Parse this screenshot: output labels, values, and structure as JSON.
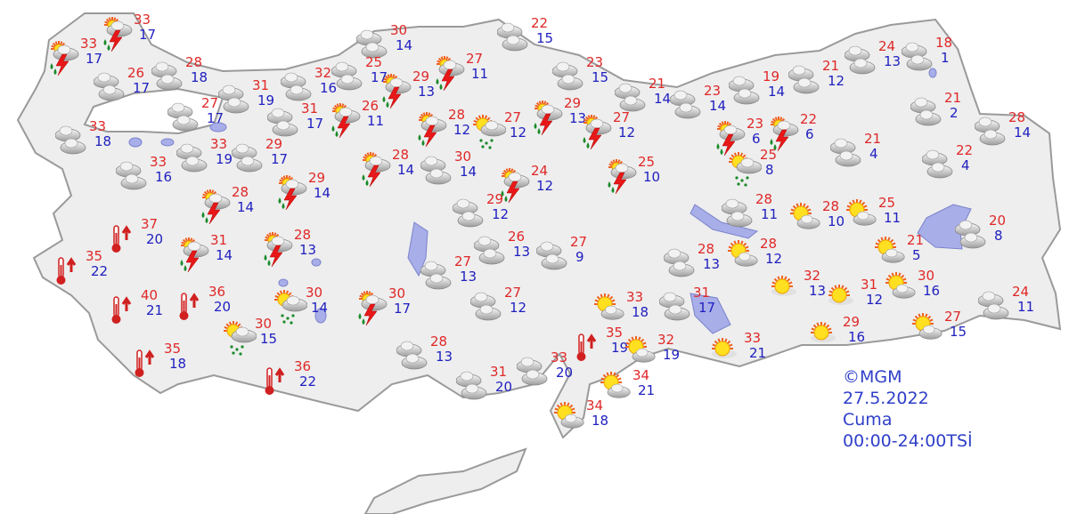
{
  "legend": {
    "copyright": "©MGM",
    "date": "27.5.2022",
    "day": "Cuma",
    "period": "00:00-24:00TSİ"
  },
  "colors": {
    "max_temp": "#e02828",
    "min_temp": "#2020c0",
    "land": "#eeeeee",
    "water": "#a8aee8",
    "border": "#9a9a9a"
  },
  "stations": [
    {
      "icon": "thunderstorm",
      "max": "33",
      "min": "17"
    },
    {
      "icon": "thunderstorm",
      "max": "33",
      "min": "17"
    },
    {
      "icon": "cloudy",
      "max": "26",
      "min": "17"
    },
    {
      "icon": "cloudy",
      "max": "28",
      "min": "18"
    },
    {
      "icon": "cloudy",
      "max": "33",
      "min": "18"
    },
    {
      "icon": "cloudy",
      "max": "27",
      "min": "17"
    },
    {
      "icon": "cloudy",
      "max": "31",
      "min": "19"
    },
    {
      "icon": "cloudy",
      "max": "32",
      "min": "16"
    },
    {
      "icon": "cloudy",
      "max": "31",
      "min": "17"
    },
    {
      "icon": "cloudy",
      "max": "33",
      "min": "19"
    },
    {
      "icon": "cloudy",
      "max": "29",
      "min": "17"
    },
    {
      "icon": "cloudy",
      "max": "33",
      "min": "16"
    },
    {
      "icon": "cloudy",
      "max": "30",
      "min": "14"
    },
    {
      "icon": "cloudy",
      "max": "25",
      "min": "17"
    },
    {
      "icon": "thunderstorm",
      "max": "29",
      "min": "13"
    },
    {
      "icon": "thunderstorm",
      "max": "27",
      "min": "11"
    },
    {
      "icon": "thunderstorm",
      "max": "26",
      "min": "11"
    },
    {
      "icon": "thunderstorm",
      "max": "28",
      "min": "12"
    },
    {
      "icon": "showers",
      "max": "27",
      "min": "12"
    },
    {
      "icon": "thunderstorm",
      "max": "29",
      "min": "13"
    },
    {
      "icon": "thunderstorm",
      "max": "27",
      "min": "12"
    },
    {
      "icon": "cloudy",
      "max": "22",
      "min": "15"
    },
    {
      "icon": "cloudy",
      "max": "23",
      "min": "15"
    },
    {
      "icon": "cloudy",
      "max": "21",
      "min": "14"
    },
    {
      "icon": "cloudy",
      "max": "23",
      "min": "14"
    },
    {
      "icon": "cloudy",
      "max": "19",
      "min": "14"
    },
    {
      "icon": "cloudy",
      "max": "21",
      "min": "12"
    },
    {
      "icon": "cloudy",
      "max": "24",
      "min": "13"
    },
    {
      "icon": "cloudy",
      "max": "18",
      "min": "1"
    },
    {
      "icon": "cloudy",
      "max": "21",
      "min": "2"
    },
    {
      "icon": "cloudy",
      "max": "28",
      "min": "14"
    },
    {
      "icon": "thunderstorm",
      "max": "23",
      "min": "6"
    },
    {
      "icon": "thunderstorm",
      "max": "22",
      "min": "6"
    },
    {
      "icon": "showers",
      "max": "25",
      "min": "8"
    },
    {
      "icon": "cloudy",
      "max": "21",
      "min": "4"
    },
    {
      "icon": "cloudy",
      "max": "22",
      "min": "4"
    },
    {
      "icon": "thunderstorm",
      "max": "28",
      "min": "14"
    },
    {
      "icon": "cloudy",
      "max": "30",
      "min": "14"
    },
    {
      "icon": "thunderstorm",
      "max": "24",
      "min": "12"
    },
    {
      "icon": "thunderstorm",
      "max": "25",
      "min": "10"
    },
    {
      "icon": "thunderstorm",
      "max": "28",
      "min": "14"
    },
    {
      "icon": "thunderstorm",
      "max": "29",
      "min": "14"
    },
    {
      "icon": "cloudy",
      "max": "29",
      "min": "12"
    },
    {
      "icon": "cloudy",
      "max": "26",
      "min": "13"
    },
    {
      "icon": "cloudy",
      "max": "27",
      "min": "9"
    },
    {
      "icon": "cloudy",
      "max": "27",
      "min": "13"
    },
    {
      "icon": "cloudy",
      "max": "27",
      "min": "12"
    },
    {
      "icon": "hot",
      "max": "37",
      "min": "20"
    },
    {
      "icon": "hot",
      "max": "35",
      "min": "22"
    },
    {
      "icon": "thunderstorm",
      "max": "31",
      "min": "14"
    },
    {
      "icon": "thunderstorm",
      "max": "28",
      "min": "13"
    },
    {
      "icon": "hot",
      "max": "40",
      "min": "21"
    },
    {
      "icon": "hot",
      "max": "36",
      "min": "20"
    },
    {
      "icon": "showers",
      "max": "30",
      "min": "14"
    },
    {
      "icon": "thunderstorm",
      "max": "30",
      "min": "17"
    },
    {
      "icon": "showers",
      "max": "30",
      "min": "15"
    },
    {
      "icon": "hot",
      "max": "35",
      "min": "18"
    },
    {
      "icon": "hot",
      "max": "36",
      "min": "22"
    },
    {
      "icon": "cloudy",
      "max": "28",
      "min": "13"
    },
    {
      "icon": "cloudy",
      "max": "31",
      "min": "20"
    },
    {
      "icon": "cloudy",
      "max": "33",
      "min": "20"
    },
    {
      "icon": "hot",
      "max": "35",
      "min": "19"
    },
    {
      "icon": "partly-cloudy",
      "max": "33",
      "min": "18"
    },
    {
      "icon": "partly-cloudy",
      "max": "32",
      "min": "19"
    },
    {
      "icon": "partly-cloudy",
      "max": "34",
      "min": "21"
    },
    {
      "icon": "partly-cloudy",
      "max": "34",
      "min": "18"
    },
    {
      "icon": "cloudy",
      "max": "31",
      "min": "17"
    },
    {
      "icon": "sunny",
      "max": "33",
      "min": "21"
    },
    {
      "icon": "cloudy",
      "max": "28",
      "min": "13"
    },
    {
      "icon": "partly-cloudy",
      "max": "28",
      "min": "12"
    },
    {
      "icon": "cloudy",
      "max": "28",
      "min": "11"
    },
    {
      "icon": "partly-cloudy",
      "max": "28",
      "min": "10"
    },
    {
      "icon": "partly-cloudy",
      "max": "25",
      "min": "11"
    },
    {
      "icon": "partly-cloudy",
      "max": "21",
      "min": "5"
    },
    {
      "icon": "cloudy",
      "max": "20",
      "min": "8"
    },
    {
      "icon": "sunny",
      "max": "32",
      "min": "13"
    },
    {
      "icon": "sunny",
      "max": "31",
      "min": "12"
    },
    {
      "icon": "partly-cloudy",
      "max": "30",
      "min": "16"
    },
    {
      "icon": "sunny",
      "max": "29",
      "min": "16"
    },
    {
      "icon": "partly-cloudy",
      "max": "27",
      "min": "15"
    },
    {
      "icon": "cloudy",
      "max": "24",
      "min": "11"
    }
  ]
}
